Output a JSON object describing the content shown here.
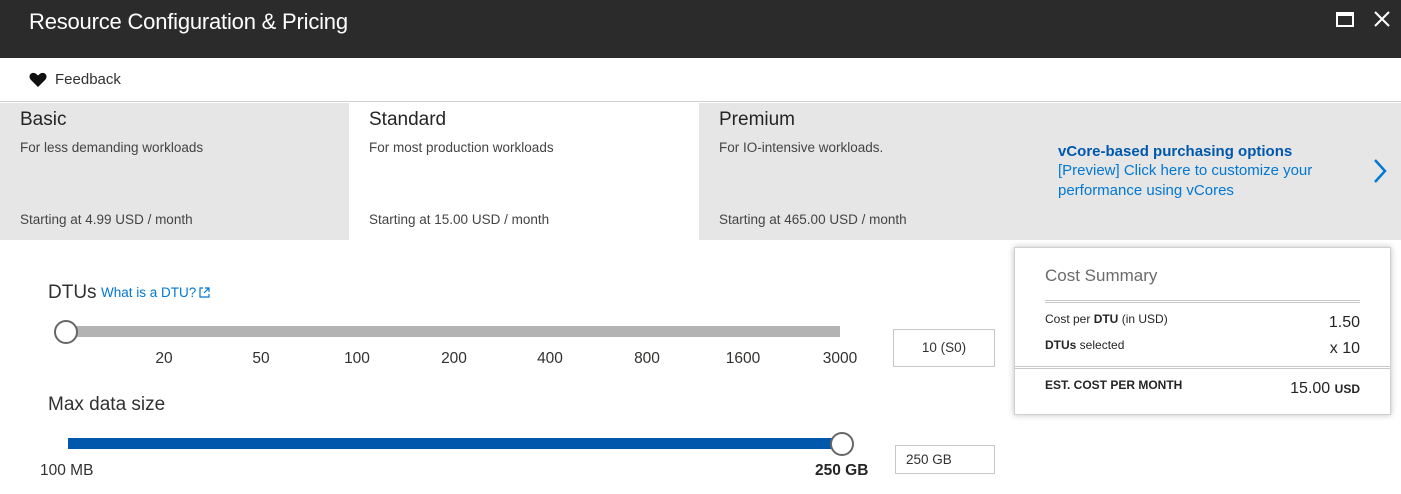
{
  "window": {
    "title": "Resource Configuration & Pricing",
    "maximize_icon": "maximize-icon",
    "close_icon": "close-icon"
  },
  "toolbar": {
    "feedback_label": "Feedback",
    "feedback_icon": "heart-icon"
  },
  "tiers": [
    {
      "name": "Basic",
      "description": "For less demanding workloads",
      "price": "Starting at 4.99 USD / month",
      "selected": false
    },
    {
      "name": "Standard",
      "description": "For most production workloads",
      "price": "Starting at 15.00 USD / month",
      "selected": true
    },
    {
      "name": "Premium",
      "description": "For IO-intensive workloads.",
      "price": "Starting at 465.00 USD / month",
      "selected": false
    }
  ],
  "vcore": {
    "title": "vCore-based purchasing options",
    "line1": "[Preview] Click here to customize your",
    "line2": "performance using vCores",
    "icon": "chevron-right-icon"
  },
  "dtu": {
    "label": "DTUs",
    "help_link": "What is a DTU?",
    "help_icon": "external-link-icon",
    "ticks": [
      "20",
      "50",
      "100",
      "200",
      "400",
      "800",
      "1600",
      "3000"
    ],
    "value": "10 (S0)"
  },
  "max_size": {
    "label": "Max data size",
    "min_label": "100 MB",
    "max_label": "250 GB",
    "value": "250 GB"
  },
  "cost_summary": {
    "title": "Cost Summary",
    "cost_per_dtu_prefix": "Cost per ",
    "cost_per_dtu_bold": "DTU",
    "cost_per_dtu_suffix": " (in USD)",
    "cost_per_dtu_value": "1.50",
    "dtus_selected_bold": "DTUs",
    "dtus_selected_suffix": " selected",
    "dtus_selected_value": "x 10",
    "est_label": "EST. COST PER MONTH",
    "est_value": "15.00",
    "est_unit": "USD"
  },
  "colors": {
    "titlebar": "#2b2b2b",
    "tier_bg": "#e6e6e6",
    "link": "#0078d4",
    "slider_fill": "#0058ad",
    "slider_track": "#b3b3b3"
  }
}
